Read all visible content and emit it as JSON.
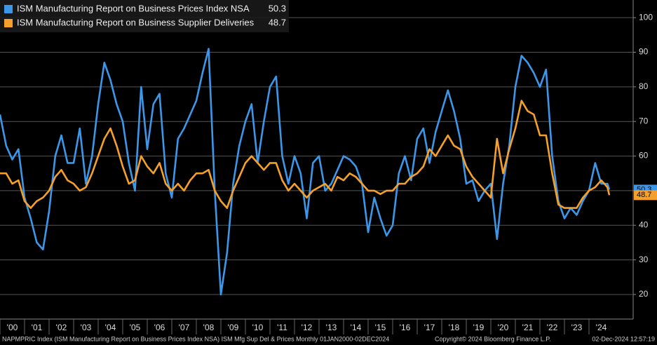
{
  "chart_data": {
    "type": "line",
    "x": [
      2000,
      2000.25,
      2000.5,
      2000.75,
      2001,
      2001.25,
      2001.5,
      2001.75,
      2002,
      2002.25,
      2002.5,
      2002.75,
      2003,
      2003.25,
      2003.5,
      2003.75,
      2004,
      2004.25,
      2004.5,
      2004.75,
      2005,
      2005.25,
      2005.5,
      2005.75,
      2006,
      2006.25,
      2006.5,
      2006.75,
      2007,
      2007.25,
      2007.5,
      2007.75,
      2008,
      2008.25,
      2008.5,
      2008.75,
      2009,
      2009.25,
      2009.5,
      2009.75,
      2010,
      2010.25,
      2010.5,
      2010.75,
      2011,
      2011.25,
      2011.5,
      2011.75,
      2012,
      2012.25,
      2012.5,
      2012.75,
      2013,
      2013.25,
      2013.5,
      2013.75,
      2014,
      2014.25,
      2014.5,
      2014.75,
      2015,
      2015.25,
      2015.5,
      2015.75,
      2016,
      2016.25,
      2016.5,
      2016.75,
      2017,
      2017.25,
      2017.5,
      2017.75,
      2018,
      2018.25,
      2018.5,
      2018.75,
      2019,
      2019.25,
      2019.5,
      2019.75,
      2020,
      2020.25,
      2020.5,
      2020.75,
      2021,
      2021.25,
      2021.5,
      2021.75,
      2022,
      2022.25,
      2022.5,
      2022.75,
      2023,
      2023.25,
      2023.5,
      2023.75,
      2024,
      2024.25,
      2024.5,
      2024.75,
      2024.83
    ],
    "series": [
      {
        "name": "ISM Manufacturing Report on Business Prices Index NSA",
        "color": "#3d97e8",
        "last_value": 50.3,
        "values": [
          72,
          63,
          59,
          62,
          48,
          42,
          35,
          33,
          44,
          60,
          66,
          58,
          58,
          68,
          52,
          60,
          75,
          87,
          82,
          75,
          70,
          58,
          50,
          80,
          62,
          75,
          78,
          55,
          48,
          65,
          68,
          72,
          76,
          84,
          91,
          50,
          20,
          32,
          52,
          63,
          70,
          75,
          58,
          70,
          80,
          83,
          60,
          52,
          60,
          55,
          42,
          58,
          60,
          50,
          52,
          56,
          60,
          59,
          57,
          52,
          38,
          48,
          42,
          37,
          40,
          55,
          60,
          53,
          65,
          68,
          58,
          67,
          73,
          79,
          73,
          65,
          52,
          53,
          47,
          50,
          52,
          36,
          52,
          63,
          80,
          89,
          87,
          84,
          80,
          85,
          60,
          47,
          42,
          45,
          43,
          47,
          50,
          58,
          52,
          52,
          50.3
        ]
      },
      {
        "name": "ISM Manufacturing Report on Business Supplier Deliveries",
        "color": "#f5a02a",
        "last_value": 48.7,
        "values": [
          55,
          55,
          52,
          53,
          47,
          45,
          47,
          48,
          50,
          54,
          56,
          53,
          52,
          50,
          51,
          55,
          60,
          65,
          68,
          63,
          57,
          52,
          53,
          60,
          57,
          55,
          58,
          52,
          50,
          52,
          50,
          53,
          55,
          55,
          56,
          50,
          47,
          45,
          50,
          54,
          58,
          60,
          58,
          56,
          58,
          58,
          53,
          50,
          52,
          50,
          48,
          50,
          51,
          52,
          50,
          54,
          53,
          55,
          54,
          52,
          50,
          50,
          49,
          50,
          50,
          52,
          52,
          54,
          55,
          57,
          62,
          60,
          63,
          66,
          63,
          62,
          57,
          54,
          52,
          50,
          48,
          65,
          55,
          62,
          68,
          76,
          73,
          72,
          66,
          66,
          55,
          46,
          45,
          45,
          45,
          48,
          50,
          51,
          53,
          51,
          48.7
        ]
      }
    ],
    "xlim": [
      2000,
      2025.8
    ],
    "xticks": [
      {
        "value": 2000,
        "label": "'00"
      },
      {
        "value": 2001,
        "label": "'01"
      },
      {
        "value": 2002,
        "label": "'02"
      },
      {
        "value": 2003,
        "label": "'03"
      },
      {
        "value": 2004,
        "label": "'04"
      },
      {
        "value": 2005,
        "label": "'05"
      },
      {
        "value": 2006,
        "label": "'06"
      },
      {
        "value": 2007,
        "label": "'07"
      },
      {
        "value": 2008,
        "label": "'08"
      },
      {
        "value": 2009,
        "label": "'09"
      },
      {
        "value": 2010,
        "label": "'10"
      },
      {
        "value": 2011,
        "label": "'11"
      },
      {
        "value": 2012,
        "label": "'12"
      },
      {
        "value": 2013,
        "label": "'13"
      },
      {
        "value": 2014,
        "label": "'14"
      },
      {
        "value": 2015,
        "label": "'15"
      },
      {
        "value": 2016,
        "label": "'16"
      },
      {
        "value": 2017,
        "label": "'17"
      },
      {
        "value": 2018,
        "label": "'18"
      },
      {
        "value": 2019,
        "label": "'19"
      },
      {
        "value": 2020,
        "label": "'20"
      },
      {
        "value": 2021,
        "label": "'21"
      },
      {
        "value": 2022,
        "label": "'22"
      },
      {
        "value": 2023,
        "label": "'23"
      },
      {
        "value": 2024,
        "label": "'24"
      }
    ],
    "ylim": [
      12.9,
      105.1
    ],
    "yticks": [
      20,
      30,
      40,
      50,
      60,
      70,
      80,
      90,
      100
    ],
    "grid": true,
    "legend": "top-left",
    "footer_left": "NAPMPRIC Index (ISM Manufacturing Report on Business Prices Index NSA) ISM Mfg Sup Del & Prices  Monthly 01JAN2000-02DEC2024",
    "footer_center": "Copyright© 2024 Bloomberg Finance L.P.",
    "footer_right": "02-Dec-2024 12:57:19"
  }
}
